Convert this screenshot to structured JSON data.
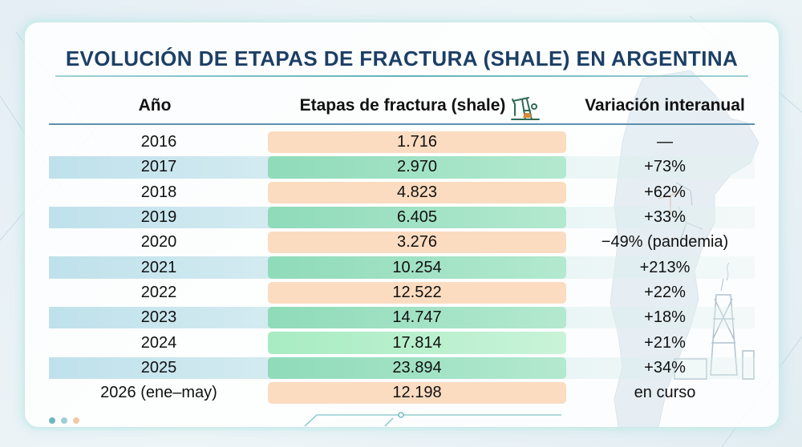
{
  "title": "EVOLUCIÓN DE ETAPAS DE FRACTURA (SHALE) EN ARGENTINA",
  "columns": {
    "year": "Año",
    "stages": "Etapas de fractura (shale)",
    "variation": "Variación interanual"
  },
  "icons": {
    "header_icon": "oil-pump-icon",
    "background_map": "argentina-map-icon",
    "background_rig": "oil-rig-icon"
  },
  "colors": {
    "title": "#1c3f66",
    "pill_orange": "#fbdcc0",
    "pill_green": "#8fdbb9",
    "pill_lightgreen": "#a8ecc2",
    "row_band": "#b4dce8",
    "dot_1": "#6fb6c4",
    "dot_2": "#9fcfd6",
    "dot_3": "#f2c9a4"
  },
  "rows": [
    {
      "year": "2016",
      "stages": "1.716",
      "variation": "—"
    },
    {
      "year": "2017",
      "stages": "2.970",
      "variation": "+73%"
    },
    {
      "year": "2018",
      "stages": "4.823",
      "variation": "+62%"
    },
    {
      "year": "2019",
      "stages": "6.405",
      "variation": "+33%"
    },
    {
      "year": "2020",
      "stages": "3.276",
      "variation": "−49% (pandemia)"
    },
    {
      "year": "2021",
      "stages": "10.254",
      "variation": "+213%"
    },
    {
      "year": "2022",
      "stages": "12.522",
      "variation": "+22%"
    },
    {
      "year": "2023",
      "stages": "14.747",
      "variation": "+18%"
    },
    {
      "year": "2024",
      "stages": "17.814",
      "variation": "+21%"
    },
    {
      "year": "2025",
      "stages": "23.894",
      "variation": "+34%"
    },
    {
      "year": "2026 (ene–may)",
      "stages": "12.198",
      "variation": "en curso"
    }
  ]
}
